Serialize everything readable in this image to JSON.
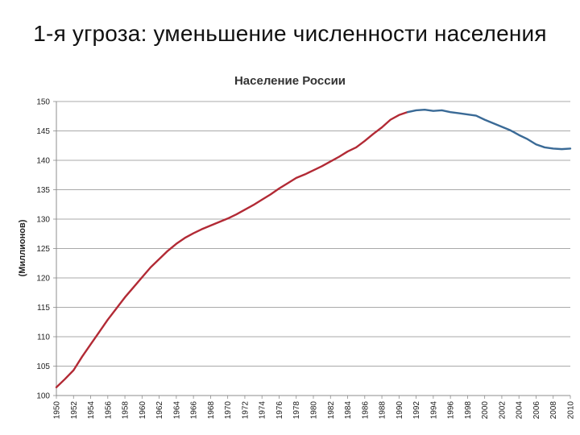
{
  "slide": {
    "title": "1-я угроза: уменьшение численности населения"
  },
  "chart_data": {
    "type": "line",
    "title": "Население России",
    "xlabel": "",
    "ylabel": "(Миллионов)",
    "xlim": [
      1950,
      2010
    ],
    "ylim": [
      100,
      150
    ],
    "yticks": [
      100,
      105,
      110,
      115,
      120,
      125,
      130,
      135,
      140,
      145,
      150
    ],
    "xticks": [
      1950,
      1952,
      1954,
      1956,
      1958,
      1960,
      1962,
      1964,
      1966,
      1968,
      1970,
      1972,
      1974,
      1976,
      1978,
      1980,
      1982,
      1984,
      1986,
      1988,
      1990,
      1992,
      1994,
      1996,
      1998,
      2000,
      2002,
      2004,
      2006,
      2008,
      2010
    ],
    "grid": true,
    "series": [
      {
        "color": "#b22a35",
        "x": [
          1950,
          1951,
          1952,
          1953,
          1954,
          1955,
          1956,
          1957,
          1958,
          1959,
          1960,
          1961,
          1962,
          1963,
          1964,
          1965,
          1966,
          1967,
          1968,
          1969,
          1970,
          1971,
          1972,
          1973,
          1974,
          1975,
          1976,
          1977,
          1978,
          1979,
          1980,
          1981,
          1982,
          1983,
          1984,
          1985,
          1986,
          1987,
          1988,
          1989,
          1990,
          1991
        ],
        "y": [
          101.4,
          102.8,
          104.3,
          106.6,
          108.7,
          110.8,
          112.9,
          114.8,
          116.7,
          118.4,
          120.1,
          121.8,
          123.2,
          124.6,
          125.8,
          126.8,
          127.6,
          128.3,
          128.9,
          129.5,
          130.1,
          130.8,
          131.6,
          132.4,
          133.3,
          134.2,
          135.2,
          136.1,
          137.0,
          137.6,
          138.3,
          139.0,
          139.8,
          140.6,
          141.5,
          142.2,
          143.3,
          144.5,
          145.6,
          146.9,
          147.7,
          148.2
        ]
      },
      {
        "color": "#3a6a96",
        "x": [
          1991,
          1992,
          1993,
          1994,
          1995,
          1996,
          1997,
          1998,
          1999,
          2000,
          2001,
          2002,
          2003,
          2004,
          2005,
          2006,
          2007,
          2008,
          2009,
          2010
        ],
        "y": [
          148.2,
          148.5,
          148.6,
          148.4,
          148.5,
          148.2,
          148.0,
          147.8,
          147.6,
          146.9,
          146.3,
          145.7,
          145.1,
          144.3,
          143.6,
          142.7,
          142.2,
          142.0,
          141.9,
          142.0
        ]
      }
    ]
  }
}
